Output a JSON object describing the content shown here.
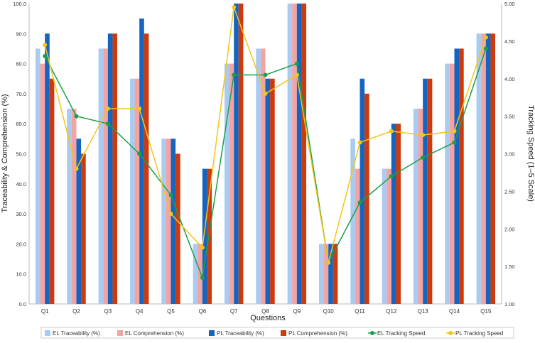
{
  "chart_data": {
    "type": "bar",
    "title": "",
    "xlabel": "Questions",
    "ylabel": "Traceability & Comprehension (%)",
    "y2label": "Tracking Speed (1–5 Scale)",
    "ylim": [
      0,
      100
    ],
    "y2lim": [
      1,
      5
    ],
    "yticks": [
      "0.0",
      "10.0",
      "20.0",
      "30.0",
      "40.0",
      "50.0",
      "60.0",
      "70.0",
      "80.0",
      "90.0",
      "100.0"
    ],
    "y2ticks": [
      "1.00",
      "1.50",
      "2.00",
      "2.50",
      "3.00",
      "3.50",
      "4.00",
      "4.50",
      "5.00"
    ],
    "grid": false,
    "legend_position": "bottom",
    "categories": [
      "Q1",
      "Q2",
      "Q3",
      "Q4",
      "Q5",
      "Q6",
      "Q7",
      "Q8",
      "Q9",
      "Q10",
      "Q11",
      "Q12",
      "Q13",
      "Q14",
      "Q15"
    ],
    "bar_series": [
      {
        "name": "EL Traceability (%)",
        "color": "#a9cbf0",
        "values": [
          85,
          65,
          85,
          75,
          55,
          20,
          80,
          85,
          100,
          20,
          55,
          45,
          65,
          80,
          90
        ]
      },
      {
        "name": "EL Comprehension (%)",
        "color": "#f4a3a3",
        "values": [
          80,
          65,
          85,
          75,
          55,
          20,
          80,
          85,
          100,
          20,
          45,
          45,
          65,
          80,
          90
        ]
      },
      {
        "name": "PL Traceability (%)",
        "color": "#1565c0",
        "values": [
          90,
          55,
          90,
          95,
          55,
          45,
          100,
          75,
          100,
          20,
          75,
          60,
          75,
          85,
          90
        ]
      },
      {
        "name": "PL Comprehension (%)",
        "color": "#cc3a0e",
        "values": [
          75,
          50,
          90,
          90,
          50,
          45,
          100,
          75,
          100,
          20,
          70,
          60,
          75,
          85,
          90
        ]
      }
    ],
    "line_series": [
      {
        "name": "EL Tracking Speed",
        "color": "#1aa04a",
        "axis": "right",
        "values": [
          4.3,
          3.5,
          3.4,
          3.0,
          2.45,
          1.35,
          4.05,
          4.05,
          4.2,
          1.55,
          2.35,
          2.7,
          2.95,
          3.15,
          4.4
        ]
      },
      {
        "name": "PL Tracking Speed",
        "color": "#f5c518",
        "axis": "right",
        "values": [
          4.45,
          2.8,
          3.6,
          3.6,
          2.2,
          1.75,
          4.95,
          3.8,
          4.05,
          1.55,
          3.15,
          3.3,
          3.25,
          3.3,
          4.55
        ]
      }
    ]
  }
}
